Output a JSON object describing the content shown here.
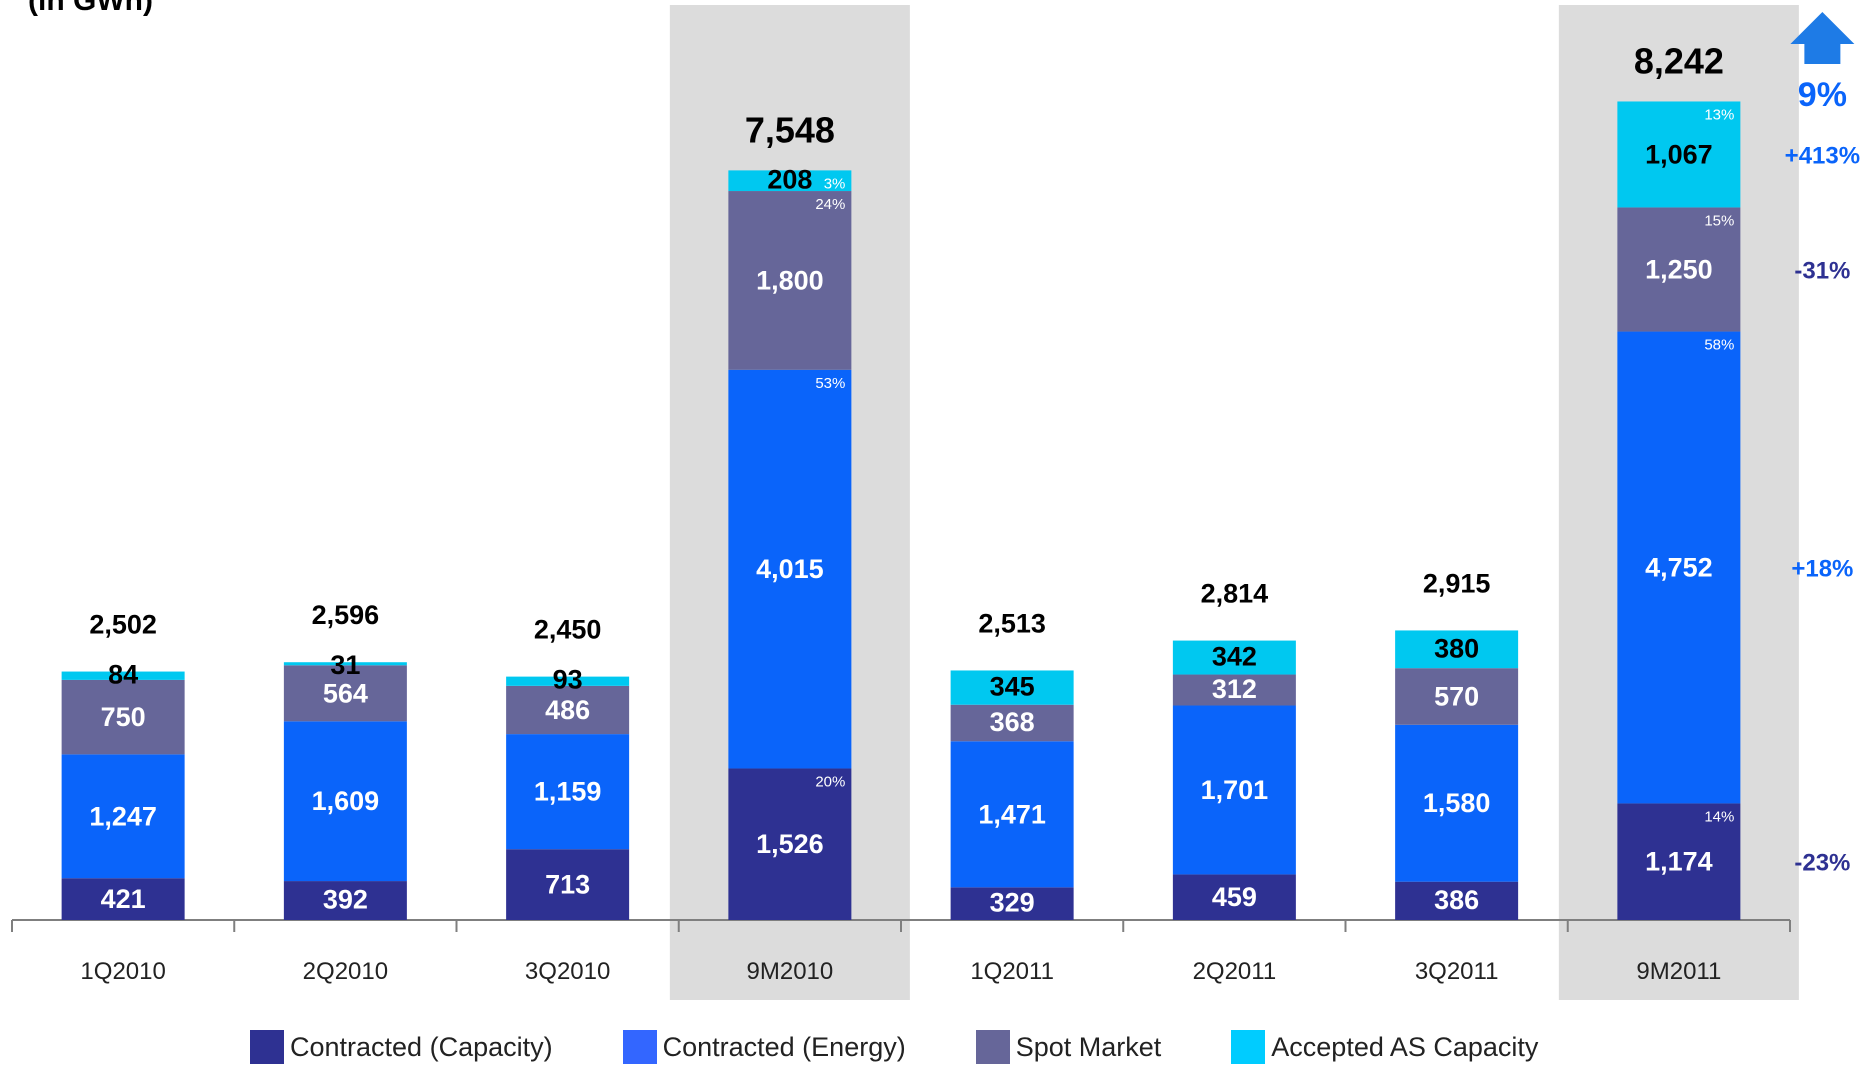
{
  "chart_data": {
    "type": "bar",
    "stacked": true,
    "title": "",
    "unit_label": "(in GWh)",
    "xlabel": "",
    "ylabel": "",
    "categories": [
      "1Q2010",
      "2Q2010",
      "3Q2010",
      "9M2010",
      "1Q2011",
      "2Q2011",
      "3Q2011",
      "9M2011"
    ],
    "highlighted_categories": [
      "9M2010",
      "9M2011"
    ],
    "totals": [
      "2,502",
      "2,596",
      "2,450",
      "7,548",
      "2,513",
      "2,814",
      "2,915",
      "8,242"
    ],
    "series": [
      {
        "name": "Contracted (Capacity)",
        "color": "#2E3192",
        "values": [
          421,
          392,
          713,
          1526,
          329,
          459,
          386,
          1174
        ],
        "labels": [
          "421",
          "392",
          "713",
          "1,526",
          "329",
          "459",
          "386",
          "1,174"
        ]
      },
      {
        "name": "Contracted (Energy)",
        "color": "#0A64FA",
        "values": [
          1247,
          1609,
          1159,
          4015,
          1471,
          1701,
          1580,
          4752
        ],
        "labels": [
          "1,247",
          "1,609",
          "1,159",
          "4,015",
          "1,471",
          "1,701",
          "1,580",
          "4,752"
        ]
      },
      {
        "name": "Spot Market",
        "color": "#666699",
        "values": [
          750,
          564,
          486,
          1800,
          368,
          312,
          570,
          1250
        ],
        "labels": [
          "750",
          "564",
          "486",
          "1,800",
          "368",
          "312",
          "570",
          "1,250"
        ]
      },
      {
        "name": "Accepted AS Capacity",
        "color": "#00C8F0",
        "values": [
          84,
          31,
          93,
          208,
          345,
          342,
          380,
          1067
        ],
        "labels": [
          "84",
          "31",
          "93",
          "208",
          "345",
          "342",
          "380",
          "1,067"
        ]
      }
    ],
    "segment_percentages": {
      "9M2010": [
        "20%",
        "53%",
        "24%",
        "3%"
      ],
      "9M2011": [
        "14%",
        "58%",
        "15%",
        "13%"
      ]
    },
    "changes": {
      "category": "9M2011",
      "total": "9%",
      "series": [
        "-23%",
        "+18%",
        "-31%",
        "+413%"
      ],
      "colors": [
        "#2E3192",
        "#0A64FA",
        "#2E3192",
        "#0A64FA"
      ]
    },
    "total_change_color": "#0A64FA",
    "legend_position": "bottom"
  }
}
